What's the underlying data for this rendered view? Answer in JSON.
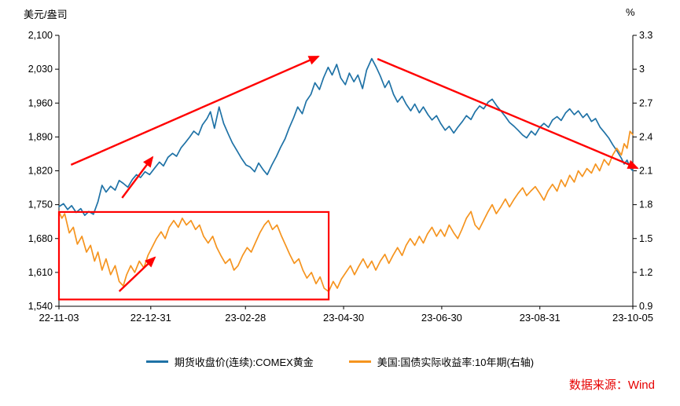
{
  "source": {
    "label": "数据来源：Wind",
    "color": "#e60000"
  },
  "legend": [
    {
      "label": "期货收盘价(连续):COMEX黄金",
      "color": "#1f72a6"
    },
    {
      "label": "美国:国债实际收益率:10年期(右轴)",
      "color": "#f5941f"
    }
  ],
  "chart_data": {
    "type": "line",
    "title": "",
    "left_axis": {
      "title": "美元/盎司",
      "min": 1540,
      "max": 2100,
      "tick_labels": [
        "2,100",
        "2,030",
        "1,960",
        "1,890",
        "1,820",
        "1,750",
        "1,680",
        "1,610",
        "1,540"
      ]
    },
    "right_axis": {
      "title": "%",
      "min": 0.9,
      "max": 3.3,
      "tick_labels": [
        "3.3",
        "3",
        "2.7",
        "2.4",
        "2.1",
        "1.8",
        "1.5",
        "1.2",
        "0.9"
      ]
    },
    "x_axis": {
      "ticks": [
        {
          "label": "22-11-03",
          "f": 0
        },
        {
          "label": "22-12-31",
          "f": 0.16
        },
        {
          "label": "23-02-28",
          "f": 0.325
        },
        {
          "label": "23-04-30",
          "f": 0.496
        },
        {
          "label": "23-06-30",
          "f": 0.667
        },
        {
          "label": "23-08-31",
          "f": 0.838
        },
        {
          "label": "23-10-05",
          "f": 1
        }
      ]
    },
    "series": [
      {
        "id": "gold-price-line",
        "name": "期货收盘价(连续):COMEX黄金",
        "axis": "left",
        "color": "#1f72a6",
        "points": [
          [
            0.0,
            1746
          ],
          [
            0.008,
            1752
          ],
          [
            0.015,
            1740
          ],
          [
            0.022,
            1748
          ],
          [
            0.03,
            1734
          ],
          [
            0.038,
            1742
          ],
          [
            0.045,
            1728
          ],
          [
            0.052,
            1736
          ],
          [
            0.06,
            1730
          ],
          [
            0.068,
            1756
          ],
          [
            0.075,
            1790
          ],
          [
            0.082,
            1776
          ],
          [
            0.09,
            1788
          ],
          [
            0.098,
            1780
          ],
          [
            0.105,
            1800
          ],
          [
            0.112,
            1794
          ],
          [
            0.12,
            1786
          ],
          [
            0.128,
            1802
          ],
          [
            0.135,
            1812
          ],
          [
            0.142,
            1806
          ],
          [
            0.15,
            1818
          ],
          [
            0.158,
            1812
          ],
          [
            0.167,
            1826
          ],
          [
            0.175,
            1838
          ],
          [
            0.182,
            1830
          ],
          [
            0.19,
            1848
          ],
          [
            0.198,
            1856
          ],
          [
            0.205,
            1850
          ],
          [
            0.213,
            1868
          ],
          [
            0.22,
            1878
          ],
          [
            0.228,
            1890
          ],
          [
            0.235,
            1902
          ],
          [
            0.243,
            1894
          ],
          [
            0.25,
            1915
          ],
          [
            0.258,
            1928
          ],
          [
            0.264,
            1942
          ],
          [
            0.271,
            1908
          ],
          [
            0.279,
            1952
          ],
          [
            0.287,
            1918
          ],
          [
            0.295,
            1896
          ],
          [
            0.302,
            1878
          ],
          [
            0.31,
            1862
          ],
          [
            0.318,
            1846
          ],
          [
            0.326,
            1832
          ],
          [
            0.333,
            1828
          ],
          [
            0.341,
            1818
          ],
          [
            0.348,
            1836
          ],
          [
            0.356,
            1822
          ],
          [
            0.363,
            1812
          ],
          [
            0.371,
            1832
          ],
          [
            0.379,
            1850
          ],
          [
            0.386,
            1868
          ],
          [
            0.394,
            1886
          ],
          [
            0.401,
            1908
          ],
          [
            0.409,
            1930
          ],
          [
            0.416,
            1952
          ],
          [
            0.424,
            1938
          ],
          [
            0.431,
            1964
          ],
          [
            0.439,
            1978
          ],
          [
            0.446,
            2002
          ],
          [
            0.454,
            1988
          ],
          [
            0.461,
            2012
          ],
          [
            0.469,
            2034
          ],
          [
            0.476,
            2018
          ],
          [
            0.484,
            2040
          ],
          [
            0.491,
            2012
          ],
          [
            0.499,
            1998
          ],
          [
            0.506,
            2022
          ],
          [
            0.514,
            2004
          ],
          [
            0.521,
            2018
          ],
          [
            0.529,
            1990
          ],
          [
            0.536,
            2028
          ],
          [
            0.545,
            2052
          ],
          [
            0.553,
            2034
          ],
          [
            0.56,
            2016
          ],
          [
            0.568,
            1992
          ],
          [
            0.575,
            2006
          ],
          [
            0.583,
            1978
          ],
          [
            0.59,
            1962
          ],
          [
            0.598,
            1974
          ],
          [
            0.605,
            1958
          ],
          [
            0.613,
            1944
          ],
          [
            0.62,
            1958
          ],
          [
            0.628,
            1940
          ],
          [
            0.635,
            1952
          ],
          [
            0.643,
            1936
          ],
          [
            0.65,
            1925
          ],
          [
            0.658,
            1934
          ],
          [
            0.665,
            1918
          ],
          [
            0.673,
            1904
          ],
          [
            0.68,
            1912
          ],
          [
            0.688,
            1898
          ],
          [
            0.695,
            1910
          ],
          [
            0.703,
            1922
          ],
          [
            0.71,
            1934
          ],
          [
            0.718,
            1926
          ],
          [
            0.725,
            1942
          ],
          [
            0.733,
            1954
          ],
          [
            0.74,
            1948
          ],
          [
            0.748,
            1962
          ],
          [
            0.755,
            1968
          ],
          [
            0.763,
            1954
          ],
          [
            0.77,
            1944
          ],
          [
            0.778,
            1932
          ],
          [
            0.785,
            1920
          ],
          [
            0.793,
            1912
          ],
          [
            0.8,
            1904
          ],
          [
            0.808,
            1894
          ],
          [
            0.815,
            1888
          ],
          [
            0.823,
            1902
          ],
          [
            0.83,
            1894
          ],
          [
            0.838,
            1910
          ],
          [
            0.845,
            1918
          ],
          [
            0.853,
            1910
          ],
          [
            0.86,
            1925
          ],
          [
            0.868,
            1932
          ],
          [
            0.875,
            1924
          ],
          [
            0.883,
            1940
          ],
          [
            0.89,
            1948
          ],
          [
            0.898,
            1936
          ],
          [
            0.905,
            1944
          ],
          [
            0.913,
            1930
          ],
          [
            0.92,
            1938
          ],
          [
            0.928,
            1922
          ],
          [
            0.935,
            1928
          ],
          [
            0.943,
            1910
          ],
          [
            0.95,
            1900
          ],
          [
            0.958,
            1888
          ],
          [
            0.965,
            1874
          ],
          [
            0.973,
            1860
          ],
          [
            0.98,
            1846
          ],
          [
            0.985,
            1834
          ],
          [
            0.99,
            1842
          ],
          [
            0.995,
            1826
          ],
          [
            1.0,
            1820
          ]
        ]
      },
      {
        "id": "real-yield-line",
        "name": "美国:国债实际收益率:10年期(右轴)",
        "axis": "right",
        "color": "#f5941f",
        "points": [
          [
            0.0,
            1.74
          ],
          [
            0.005,
            1.68
          ],
          [
            0.01,
            1.72
          ],
          [
            0.018,
            1.55
          ],
          [
            0.025,
            1.6
          ],
          [
            0.032,
            1.45
          ],
          [
            0.04,
            1.52
          ],
          [
            0.048,
            1.38
          ],
          [
            0.055,
            1.44
          ],
          [
            0.062,
            1.3
          ],
          [
            0.068,
            1.38
          ],
          [
            0.075,
            1.22
          ],
          [
            0.082,
            1.32
          ],
          [
            0.09,
            1.18
          ],
          [
            0.098,
            1.26
          ],
          [
            0.105,
            1.12
          ],
          [
            0.112,
            1.08
          ],
          [
            0.118,
            1.18
          ],
          [
            0.125,
            1.26
          ],
          [
            0.132,
            1.2
          ],
          [
            0.14,
            1.3
          ],
          [
            0.148,
            1.24
          ],
          [
            0.155,
            1.35
          ],
          [
            0.162,
            1.42
          ],
          [
            0.17,
            1.5
          ],
          [
            0.178,
            1.56
          ],
          [
            0.185,
            1.5
          ],
          [
            0.192,
            1.6
          ],
          [
            0.2,
            1.66
          ],
          [
            0.208,
            1.6
          ],
          [
            0.215,
            1.68
          ],
          [
            0.222,
            1.62
          ],
          [
            0.23,
            1.66
          ],
          [
            0.238,
            1.58
          ],
          [
            0.245,
            1.62
          ],
          [
            0.252,
            1.52
          ],
          [
            0.26,
            1.46
          ],
          [
            0.268,
            1.52
          ],
          [
            0.275,
            1.42
          ],
          [
            0.282,
            1.35
          ],
          [
            0.29,
            1.28
          ],
          [
            0.298,
            1.32
          ],
          [
            0.305,
            1.22
          ],
          [
            0.312,
            1.26
          ],
          [
            0.32,
            1.35
          ],
          [
            0.328,
            1.42
          ],
          [
            0.335,
            1.38
          ],
          [
            0.342,
            1.46
          ],
          [
            0.35,
            1.55
          ],
          [
            0.358,
            1.62
          ],
          [
            0.365,
            1.66
          ],
          [
            0.372,
            1.58
          ],
          [
            0.38,
            1.62
          ],
          [
            0.388,
            1.52
          ],
          [
            0.395,
            1.44
          ],
          [
            0.402,
            1.36
          ],
          [
            0.41,
            1.28
          ],
          [
            0.418,
            1.32
          ],
          [
            0.425,
            1.22
          ],
          [
            0.432,
            1.15
          ],
          [
            0.44,
            1.2
          ],
          [
            0.448,
            1.1
          ],
          [
            0.455,
            1.16
          ],
          [
            0.462,
            1.06
          ],
          [
            0.47,
            1.03
          ],
          [
            0.478,
            1.12
          ],
          [
            0.485,
            1.06
          ],
          [
            0.492,
            1.14
          ],
          [
            0.5,
            1.2
          ],
          [
            0.508,
            1.26
          ],
          [
            0.515,
            1.18
          ],
          [
            0.522,
            1.25
          ],
          [
            0.53,
            1.32
          ],
          [
            0.538,
            1.24
          ],
          [
            0.545,
            1.3
          ],
          [
            0.552,
            1.22
          ],
          [
            0.56,
            1.3
          ],
          [
            0.568,
            1.36
          ],
          [
            0.575,
            1.28
          ],
          [
            0.582,
            1.35
          ],
          [
            0.59,
            1.42
          ],
          [
            0.598,
            1.35
          ],
          [
            0.605,
            1.44
          ],
          [
            0.612,
            1.5
          ],
          [
            0.62,
            1.44
          ],
          [
            0.628,
            1.52
          ],
          [
            0.635,
            1.46
          ],
          [
            0.642,
            1.54
          ],
          [
            0.65,
            1.6
          ],
          [
            0.658,
            1.52
          ],
          [
            0.665,
            1.58
          ],
          [
            0.672,
            1.52
          ],
          [
            0.68,
            1.62
          ],
          [
            0.688,
            1.55
          ],
          [
            0.695,
            1.5
          ],
          [
            0.702,
            1.58
          ],
          [
            0.71,
            1.68
          ],
          [
            0.718,
            1.74
          ],
          [
            0.725,
            1.62
          ],
          [
            0.732,
            1.58
          ],
          [
            0.74,
            1.66
          ],
          [
            0.748,
            1.74
          ],
          [
            0.755,
            1.8
          ],
          [
            0.762,
            1.72
          ],
          [
            0.77,
            1.78
          ],
          [
            0.778,
            1.85
          ],
          [
            0.785,
            1.78
          ],
          [
            0.792,
            1.84
          ],
          [
            0.8,
            1.9
          ],
          [
            0.808,
            1.95
          ],
          [
            0.815,
            1.88
          ],
          [
            0.822,
            1.92
          ],
          [
            0.83,
            1.96
          ],
          [
            0.838,
            1.9
          ],
          [
            0.845,
            1.84
          ],
          [
            0.852,
            1.92
          ],
          [
            0.86,
            1.98
          ],
          [
            0.868,
            1.92
          ],
          [
            0.875,
            2.02
          ],
          [
            0.882,
            1.96
          ],
          [
            0.89,
            2.06
          ],
          [
            0.898,
            2.0
          ],
          [
            0.905,
            2.1
          ],
          [
            0.912,
            2.05
          ],
          [
            0.92,
            2.12
          ],
          [
            0.928,
            2.08
          ],
          [
            0.935,
            2.16
          ],
          [
            0.942,
            2.1
          ],
          [
            0.95,
            2.2
          ],
          [
            0.958,
            2.15
          ],
          [
            0.965,
            2.24
          ],
          [
            0.972,
            2.3
          ],
          [
            0.98,
            2.24
          ],
          [
            0.985,
            2.34
          ],
          [
            0.99,
            2.3
          ],
          [
            0.995,
            2.45
          ],
          [
            1.0,
            2.42
          ]
        ]
      }
    ],
    "annotations": {
      "color": "#ff0000",
      "arrows": [
        {
          "name": "uptrend-arrow",
          "x1": 0.021,
          "y1": 0.478,
          "x2": 0.452,
          "y2": 0.078
        },
        {
          "name": "downtrend-arrow",
          "x1": 0.555,
          "y1": 0.087,
          "x2": 1.008,
          "y2": 0.49
        },
        {
          "name": "small-up-arrow-price",
          "x1": 0.11,
          "y1": 0.6,
          "x2": 0.163,
          "y2": 0.45
        },
        {
          "name": "small-up-arrow-yield",
          "x1": 0.105,
          "y1": 0.945,
          "x2": 0.167,
          "y2": 0.82
        }
      ],
      "rect": {
        "x1": 0.0,
        "y1": 0.652,
        "x2": 0.47,
        "y2": 0.975
      }
    }
  }
}
